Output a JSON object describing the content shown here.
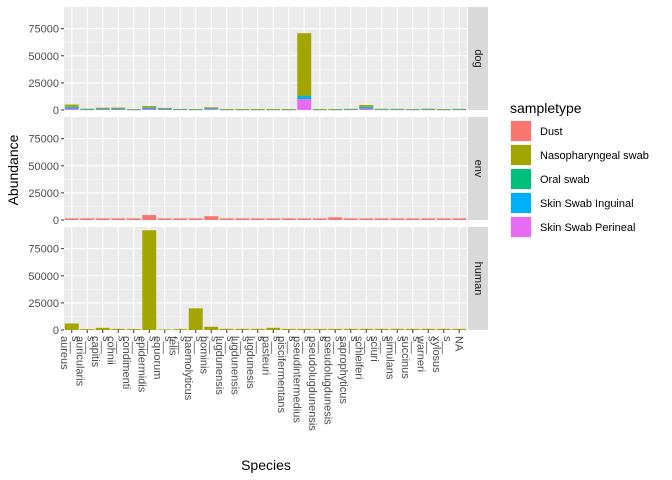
{
  "chart_data": {
    "type": "bar",
    "stacked": true,
    "xlabel": "Species",
    "ylabel": "Abundance",
    "ylim": [
      0,
      95000
    ],
    "yticks": [
      0,
      25000,
      50000,
      75000
    ],
    "ytick_labels": [
      "0",
      "25000",
      "50000",
      "75000"
    ],
    "grid": true,
    "legend": {
      "title": "sampletype",
      "position": "right",
      "entries": [
        "Dust",
        "Nasopharyngeal swab",
        "Oral swab",
        "Skin Swab Inguinal",
        "Skin Swab Perineal"
      ]
    },
    "colors": {
      "Dust": "#F8766D",
      "Nasopharyngeal swab": "#A3A500",
      "Oral swab": "#00BF7D",
      "Skin Swab Inguinal": "#00B0F6",
      "Skin Swab Perineal": "#E76BF3"
    },
    "categories": [
      "s__aureus",
      "s__auricularis",
      "s__capitis",
      "s__cohnii",
      "s__condimenti",
      "s__epidermidis",
      "s__equorum",
      "s__felis",
      "s__haemolyticus",
      "s__hominis",
      "s__lugdunensis",
      "s__lugdunensis",
      "s__lugdunesis",
      "s__pasteuri",
      "s__piscifermentans",
      "s__pseudintermedius",
      "s__pseudolugdunensis",
      "s__pseudolugdunesis",
      "s__saprophyticus",
      "s__schleiferi",
      "s__sciuri",
      "s__simulans",
      "s__succinus",
      "s__warneri",
      "s__xylosus",
      "NA"
    ],
    "tick_labels": [
      [
        "s__",
        "aureus"
      ],
      [
        "s__",
        "auricularis"
      ],
      [
        "s__",
        "capitis"
      ],
      [
        "s__",
        "cohnii"
      ],
      [
        "s__",
        "condimenti"
      ],
      [
        "s__",
        "epidermidis"
      ],
      [
        "s__",
        "equorum"
      ],
      [
        "s__",
        "felis"
      ],
      [
        "s__",
        "haemolyticus"
      ],
      [
        "s__",
        "hominis"
      ],
      [
        "s__",
        "lugdunensis"
      ],
      [
        "s__",
        "lugdunensis"
      ],
      [
        "s__",
        "lugdunesis"
      ],
      [
        "s__",
        "pasteuri"
      ],
      [
        "s__",
        "piscifermentans"
      ],
      [
        "s__",
        "pseudintermedius"
      ],
      [
        "s__",
        "pseudolugdunensis"
      ],
      [
        "s__",
        "pseudolugdunesis"
      ],
      [
        "s__",
        "saprophyticus"
      ],
      [
        "s__",
        "schleiferi"
      ],
      [
        "s__",
        "sciuri"
      ],
      [
        "s__",
        "simulans"
      ],
      [
        "s__",
        "succinus"
      ],
      [
        "s__",
        "warneri"
      ],
      [
        "s__",
        "xylosus"
      ],
      [
        "",
        "NA"
      ]
    ],
    "facets": [
      {
        "name": "dog",
        "series": [
          {
            "name": "Skin Swab Perineal",
            "values": [
              1200,
              300,
              500,
              500,
              200,
              1000,
              500,
              300,
              200,
              700,
              200,
              200,
              200,
              200,
              200,
              10000,
              200,
              200,
              300,
              1200,
              300,
              300,
              200,
              300,
              200,
              300
            ]
          },
          {
            "name": "Skin Swab Inguinal",
            "values": [
              1200,
              300,
              500,
              500,
              200,
              1000,
              500,
              300,
              200,
              700,
              200,
              200,
              200,
              200,
              200,
              2500,
              200,
              200,
              300,
              1200,
              300,
              300,
              200,
              300,
              200,
              300
            ]
          },
          {
            "name": "Oral swab",
            "values": [
              600,
              200,
              300,
              300,
              100,
              400,
              300,
              100,
              100,
              300,
              100,
              100,
              100,
              100,
              100,
              800,
              100,
              100,
              100,
              600,
              100,
              100,
              100,
              100,
              100,
              100
            ]
          },
          {
            "name": "Nasopharyngeal swab",
            "values": [
              2000,
              400,
              800,
              900,
              300,
              1300,
              600,
              300,
              300,
              800,
              300,
              300,
              300,
              300,
              300,
              57500,
              300,
              300,
              400,
              1600,
              400,
              400,
              300,
              500,
              300,
              400
            ]
          }
        ]
      },
      {
        "name": "env",
        "series": [
          {
            "name": "Dust",
            "values": [
              1500,
              1500,
              1500,
              1500,
              1500,
              4500,
              1500,
              1500,
              1500,
              3500,
              1500,
              1500,
              1500,
              1500,
              1500,
              1500,
              1500,
              2500,
              1500,
              1500,
              1500,
              1500,
              1500,
              1500,
              1500,
              1500
            ]
          }
        ]
      },
      {
        "name": "human",
        "series": [
          {
            "name": "Nasopharyngeal swab",
            "values": [
              6000,
              800,
              2000,
              1000,
              800,
              92000,
              500,
              800,
              20000,
              3000,
              1000,
              1000,
              1000,
              2000,
              1000,
              1000,
              1000,
              1000,
              1000,
              1000,
              1000,
              1000,
              1000,
              1000,
              1000,
              1000
            ]
          }
        ]
      }
    ]
  }
}
